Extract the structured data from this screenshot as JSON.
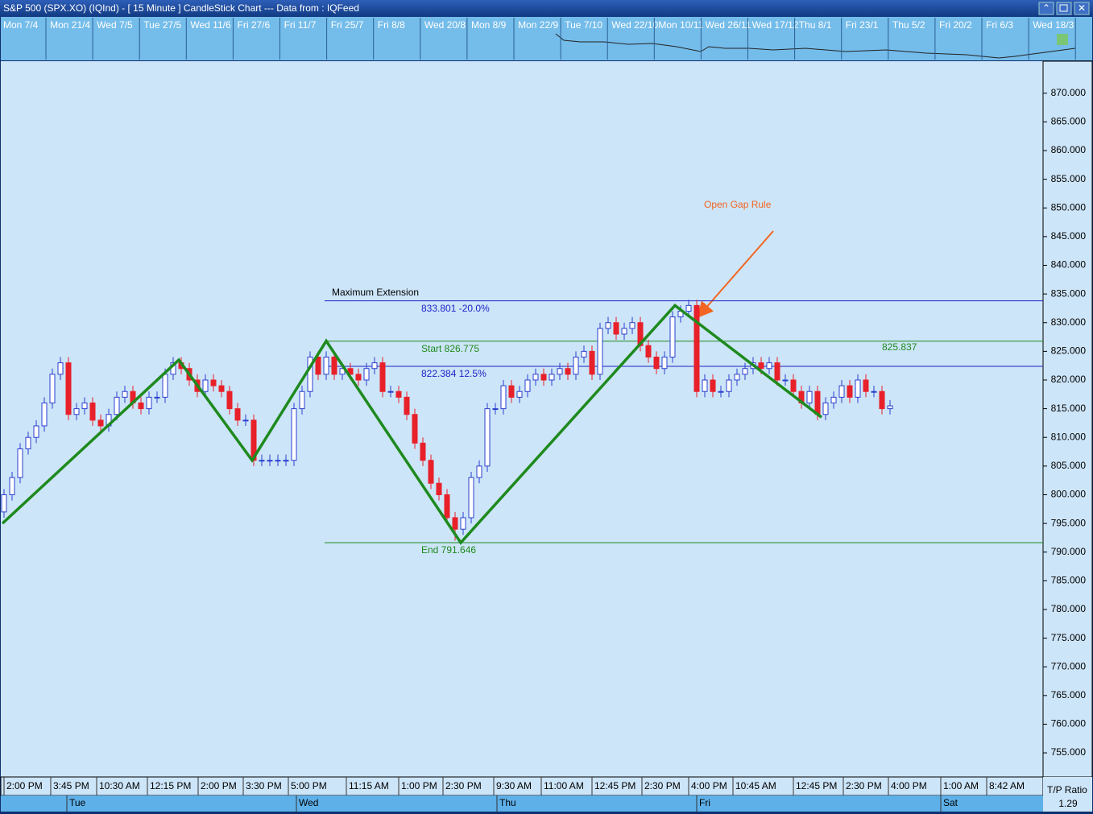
{
  "window_title": "S&P 500 (SPX.XO) (IQInd) -  [ 15 Minute ] CandleStick Chart --- Data from : IQFeed",
  "overview": {
    "labels": [
      "Mon 7/4",
      "Mon 21/4",
      "Wed 7/5",
      "Tue 27/5",
      "Wed 11/6",
      "Fri 27/6",
      "Fri 11/7",
      "Fri 25/7",
      "Fri 8/8",
      "Wed 20/8",
      "Mon 8/9",
      "Mon 22/9",
      "Tue 7/10",
      "Wed 22/10",
      "Mon 10/11",
      "Wed 26/11",
      "Wed 17/12",
      "Thu 8/1",
      "Fri 23/1",
      "Thu 5/2",
      "Fri 20/2",
      "Fri 6/3",
      "Wed 18/3"
    ]
  },
  "status": {
    "label": "T/P Ratio",
    "value": 1.29
  },
  "chart_data": {
    "type": "candlestick",
    "ylim": [
      750.8,
      875.3
    ],
    "yticks": [
      {
        "value": 870,
        "label": "870.000"
      },
      {
        "value": 865,
        "label": "865.000"
      },
      {
        "value": 860,
        "label": "860.000"
      },
      {
        "value": 855,
        "label": "855.000"
      },
      {
        "value": 850,
        "label": "850.000"
      },
      {
        "value": 845,
        "label": "845.000"
      },
      {
        "value": 840,
        "label": "840.000"
      },
      {
        "value": 835,
        "label": "835.000"
      },
      {
        "value": 830,
        "label": "830.000"
      },
      {
        "value": 825,
        "label": "825.000"
      },
      {
        "value": 820,
        "label": "820.000"
      },
      {
        "value": 815,
        "label": "815.000"
      },
      {
        "value": 810,
        "label": "810.000"
      },
      {
        "value": 805,
        "label": "805.000"
      },
      {
        "value": 800,
        "label": "800.000"
      },
      {
        "value": 795,
        "label": "795.000"
      },
      {
        "value": 790,
        "label": "790.000"
      },
      {
        "value": 785,
        "label": "785.000"
      },
      {
        "value": 780,
        "label": "780.000"
      },
      {
        "value": 775,
        "label": "775.000"
      },
      {
        "value": 770,
        "label": "770.000"
      },
      {
        "value": 765,
        "label": "765.000"
      },
      {
        "value": 760,
        "label": "760.000"
      },
      {
        "value": 755,
        "label": "755.000"
      }
    ],
    "xlim": [
      -0.5,
      129
    ],
    "xticks": [
      {
        "value": 0,
        "label": "2:00 PM"
      },
      {
        "value": 5.8,
        "label": "3:45 PM"
      },
      {
        "value": 11.5,
        "label": "10:30 AM"
      },
      {
        "value": 17.8,
        "label": "12:15 PM"
      },
      {
        "value": 24.1,
        "label": "2:00 PM"
      },
      {
        "value": 29.7,
        "label": "3:30 PM"
      },
      {
        "value": 35.3,
        "label": "5:00 PM"
      },
      {
        "value": 42.5,
        "label": "11:15 AM"
      },
      {
        "value": 49,
        "label": "1:00 PM"
      },
      {
        "value": 54.5,
        "label": "2:30 PM"
      },
      {
        "value": 60.8,
        "label": "9:30 AM"
      },
      {
        "value": 66.7,
        "label": "11:00 AM"
      },
      {
        "value": 73,
        "label": "12:45 PM"
      },
      {
        "value": 79.2,
        "label": "2:30 PM"
      },
      {
        "value": 85,
        "label": "4:00 PM"
      },
      {
        "value": 90.5,
        "label": "10:45 AM"
      },
      {
        "value": 98,
        "label": "12:45 PM"
      },
      {
        "value": 104.2,
        "label": "2:30 PM"
      },
      {
        "value": 109.8,
        "label": "4:00 PM"
      },
      {
        "value": 116.3,
        "label": "1:00 AM"
      },
      {
        "value": 122,
        "label": "8:42 AM"
      }
    ],
    "day_ticks": [
      {
        "value": 7.8,
        "label": "Tue"
      },
      {
        "value": 36.3,
        "label": "Wed"
      },
      {
        "value": 61.2,
        "label": "Thu"
      },
      {
        "value": 86,
        "label": "Fri"
      },
      {
        "value": 116.3,
        "label": "Sat"
      }
    ],
    "up_color": "#2a3fcf",
    "down_color": "#e8202a",
    "candles": {
      "open": [
        797,
        800,
        803,
        808,
        810,
        812,
        816,
        821,
        823,
        814,
        815,
        816,
        813,
        812,
        814,
        817,
        818,
        816,
        815,
        817,
        817,
        821,
        823,
        822,
        820,
        818,
        820,
        819,
        818,
        815,
        813,
        813,
        806,
        806,
        806,
        806,
        806,
        815,
        818,
        824,
        821,
        824,
        821,
        822,
        821,
        820,
        822,
        823,
        818,
        818,
        817,
        814,
        809,
        806,
        802,
        800,
        796,
        794,
        796,
        803,
        805,
        815,
        815,
        819,
        817,
        818,
        820,
        821,
        820,
        821,
        822,
        821,
        824,
        825,
        821,
        829,
        830,
        828,
        829,
        830,
        826,
        824,
        822,
        824,
        831,
        832,
        833,
        818,
        820,
        818,
        818,
        820,
        821,
        822,
        823,
        822,
        823,
        820,
        820,
        818,
        816,
        818,
        814,
        816,
        817,
        819,
        817,
        820,
        818,
        818,
        815
      ],
      "high": [
        801,
        804,
        809,
        811,
        813,
        817,
        822,
        824,
        824,
        816,
        817,
        817,
        814,
        815,
        818,
        819,
        819,
        817,
        818,
        818,
        822,
        824,
        824,
        823,
        821,
        821,
        821,
        820,
        819,
        816,
        814,
        814,
        807,
        807,
        807,
        807,
        816,
        819,
        825,
        825,
        825,
        825,
        823,
        823,
        822,
        823,
        824,
        824,
        819,
        819,
        818,
        815,
        810,
        807,
        803,
        801,
        797,
        797,
        804,
        806,
        816,
        816,
        820,
        820,
        819,
        821,
        822,
        822,
        822,
        823,
        823,
        825,
        826,
        826,
        830,
        831,
        831,
        830,
        831,
        831,
        827,
        825,
        825,
        832,
        833,
        834,
        834,
        821,
        821,
        819,
        821,
        822,
        823,
        824,
        824,
        824,
        824,
        821,
        821,
        819,
        819,
        819,
        817,
        818,
        820,
        820,
        821,
        821,
        819,
        819,
        816.5
      ],
      "low": [
        796,
        799,
        802,
        807,
        809,
        811,
        815,
        820,
        813,
        813,
        814,
        812,
        811,
        811,
        813,
        816,
        815,
        814,
        814,
        816,
        816,
        820,
        821,
        819,
        817,
        817,
        818,
        817,
        814,
        812,
        812,
        805,
        805,
        805,
        805,
        805,
        805,
        814,
        817,
        820,
        820,
        820,
        820,
        820,
        819,
        819,
        821,
        817,
        817,
        816,
        813,
        808,
        805,
        801,
        799,
        795,
        792,
        793,
        795,
        802,
        804,
        814,
        814,
        816,
        816,
        817,
        819,
        819,
        819,
        820,
        820,
        820,
        823,
        820,
        820,
        828,
        827,
        827,
        828,
        825,
        823,
        821,
        821,
        823,
        830,
        831,
        817,
        817,
        817,
        817,
        817,
        819,
        820,
        821,
        821,
        821,
        819,
        819,
        817,
        815,
        815,
        813,
        813,
        815,
        816,
        816,
        816,
        817,
        817,
        814,
        814
      ],
      "close": [
        800,
        803,
        808,
        810,
        812,
        816,
        821,
        823,
        814,
        815,
        816,
        813,
        812,
        814,
        817,
        818,
        816,
        815,
        817,
        817,
        821,
        823,
        822,
        820,
        818,
        820,
        819,
        818,
        815,
        813,
        813,
        806,
        806,
        806,
        806,
        806,
        815,
        818,
        824,
        821,
        824,
        821,
        822,
        821,
        820,
        822,
        823,
        818,
        818,
        817,
        814,
        809,
        806,
        802,
        800,
        796,
        794,
        796,
        803,
        805,
        815,
        815,
        819,
        817,
        818,
        820,
        821,
        820,
        821,
        822,
        821,
        824,
        825,
        821,
        829,
        830,
        828,
        829,
        830,
        826,
        824,
        822,
        824,
        831,
        832,
        833,
        818,
        820,
        818,
        818,
        820,
        821,
        822,
        823,
        822,
        823,
        820,
        820,
        818,
        816,
        818,
        814,
        816,
        817,
        819,
        817,
        820,
        818,
        818,
        815,
        815.5
      ]
    },
    "zigzag": {
      "color": "#1e8a1e",
      "x": [
        -0.2,
        21.7,
        30.8,
        40,
        56.7,
        83.3,
        101.5
      ],
      "values": [
        795,
        823.5,
        806,
        826.8,
        791.646,
        833,
        813.5
      ]
    },
    "levels_start": 39.8,
    "levels": [
      {
        "value": 833.801,
        "label": "833.801 -20.0%",
        "color": "#1f1fc8"
      },
      {
        "value": 826.775,
        "label": "Start 826.775",
        "color": "#1e8a1e"
      },
      {
        "value": 822.384,
        "label": "822.384 12.5%",
        "color": "#1f1fc8"
      },
      {
        "value": 791.646,
        "label": "End 791.646",
        "color": "#1e8a1e"
      }
    ],
    "annotations": {
      "max_extension": "Maximum Extension",
      "open_gap": "Open Gap Rule",
      "last_level": "825.837"
    }
  }
}
